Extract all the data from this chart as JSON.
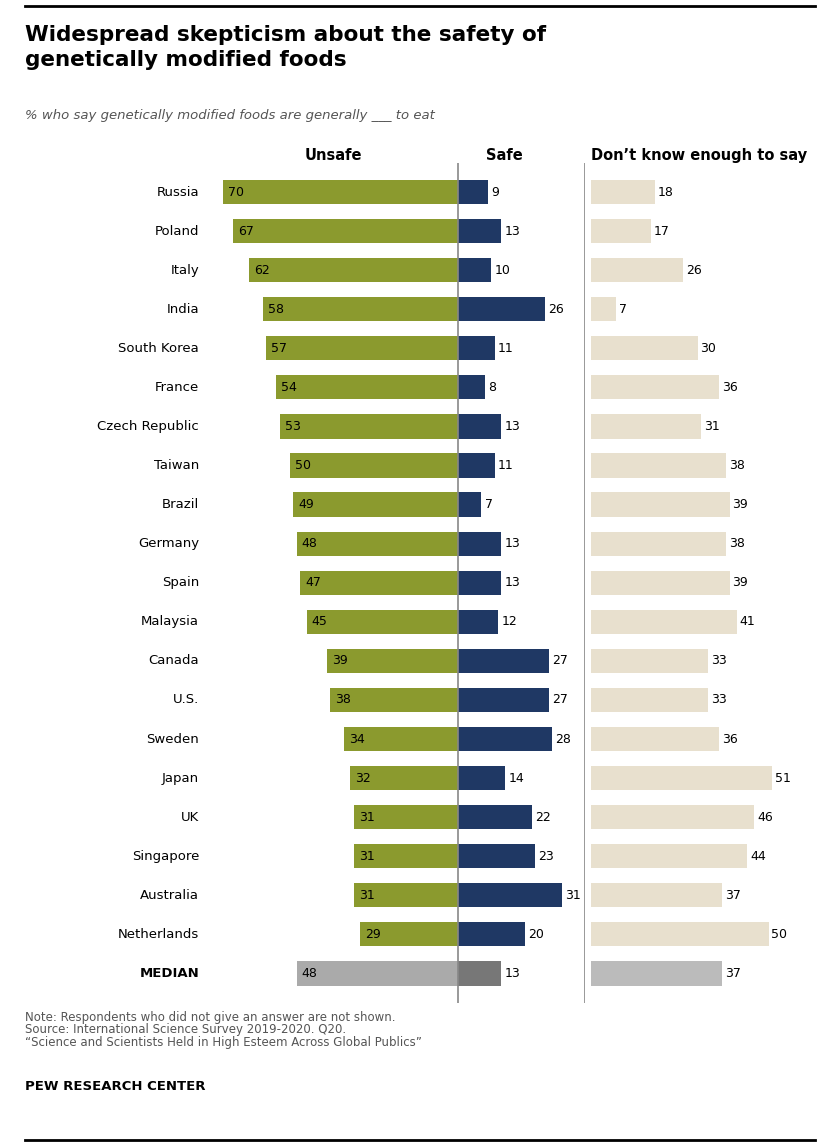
{
  "title": "Widespread skepticism about the safety of\ngenetically modified foods",
  "subtitle": "% who say genetically modified foods are generally ___ to eat",
  "countries": [
    "Russia",
    "Poland",
    "Italy",
    "India",
    "South Korea",
    "France",
    "Czech Republic",
    "Taiwan",
    "Brazil",
    "Germany",
    "Spain",
    "Malaysia",
    "Canada",
    "U.S.",
    "Sweden",
    "Japan",
    "UK",
    "Singapore",
    "Australia",
    "Netherlands",
    "MEDIAN"
  ],
  "unsafe": [
    70,
    67,
    62,
    58,
    57,
    54,
    53,
    50,
    49,
    48,
    47,
    45,
    39,
    38,
    34,
    32,
    31,
    31,
    31,
    29,
    48
  ],
  "safe": [
    9,
    13,
    10,
    26,
    11,
    8,
    13,
    11,
    7,
    13,
    13,
    12,
    27,
    27,
    28,
    14,
    22,
    23,
    31,
    20,
    13
  ],
  "dontknow": [
    18,
    17,
    26,
    7,
    30,
    36,
    31,
    38,
    39,
    38,
    39,
    41,
    33,
    33,
    36,
    51,
    46,
    44,
    37,
    50,
    37
  ],
  "unsafe_color": "#8B9A2E",
  "safe_color": "#1F3864",
  "dontknow_color": "#E8E0CE",
  "median_unsafe_color": "#AAAAAA",
  "median_safe_color": "#777777",
  "median_dontknow_color": "#BBBBBB",
  "divider_color": "#888888",
  "note1": "Note: Respondents who did not give an answer are not shown.",
  "note2": "Source: International Science Survey 2019-2020. Q20.",
  "note3": "“Science and Scientists Held in High Esteem Across Global Publics”",
  "footer": "PEW RESEARCH CENTER",
  "bar_height": 0.62,
  "unsafe_label": "Unsafe",
  "safe_label": "Safe",
  "dontknow_label": "Don’t know enough to say"
}
